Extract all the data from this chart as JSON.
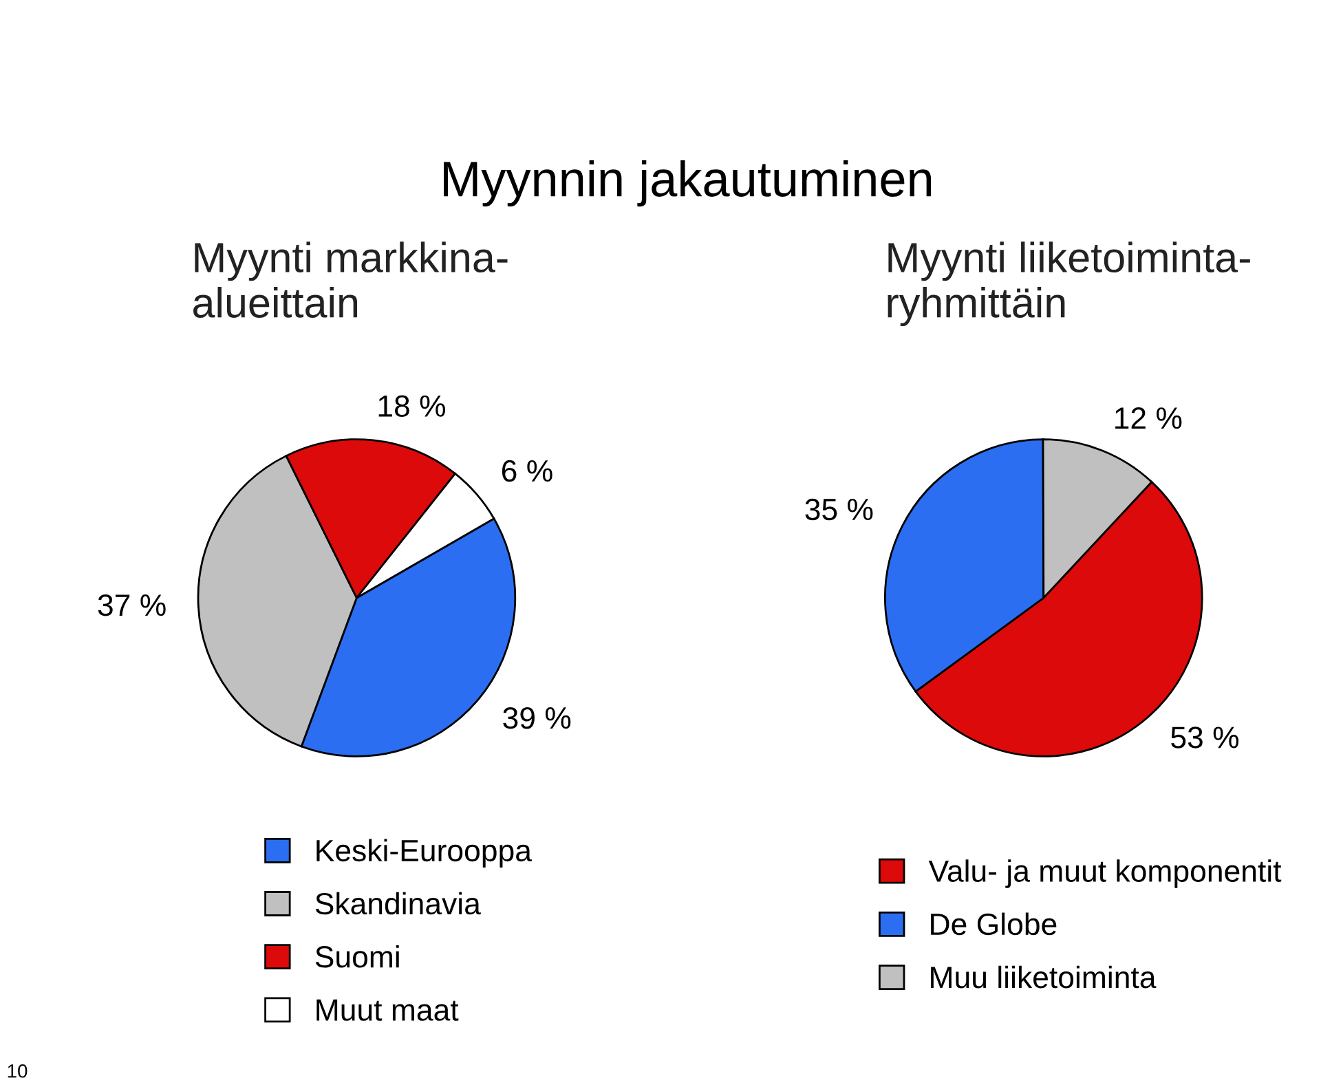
{
  "chart_data": [
    {
      "type": "pie",
      "title": "Myynti markkina-\nalueittain",
      "categories": [
        "Keski-Eurooppa",
        "Skandinavia",
        "Suomi",
        "Muut maat"
      ],
      "values": [
        39,
        37,
        18,
        6
      ],
      "colors": [
        "#2b6ef2",
        "#c0c0c0",
        "#dc0a0a",
        "#ffffff"
      ],
      "value_labels": [
        "39 %",
        "37 %",
        "18 %",
        "6 %"
      ],
      "legend": "bottom",
      "annotations": [
        "Myynnin jakautuminen",
        "10"
      ]
    },
    {
      "type": "pie",
      "title": "Myynti liiketoiminta-\nryhmittäin",
      "categories": [
        "Valu- ja muut komponentit",
        "De Globe",
        "Muu liiketoiminta"
      ],
      "values": [
        53,
        35,
        12
      ],
      "colors": [
        "#dc0a0a",
        "#2b6ef2",
        "#c0c0c0"
      ],
      "value_labels": [
        "53 %",
        "35 %",
        "12 %"
      ],
      "legend": "bottom"
    }
  ]
}
